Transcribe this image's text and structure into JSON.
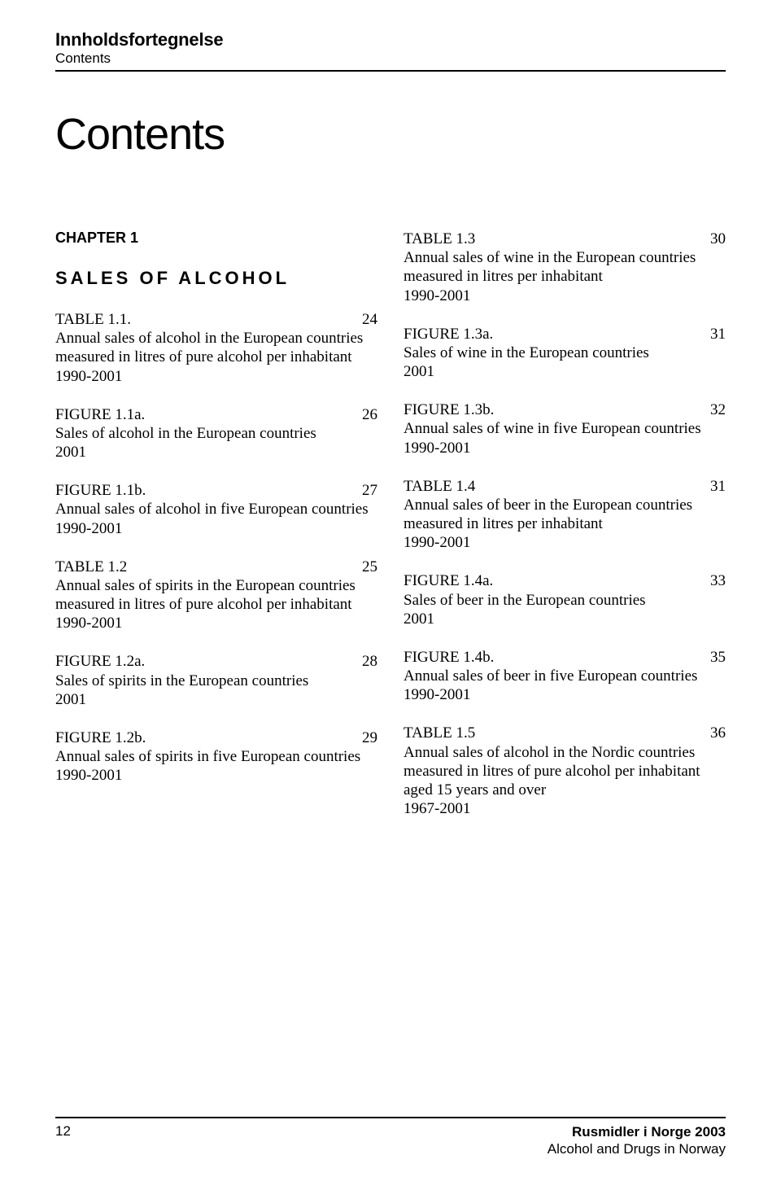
{
  "header": {
    "title": "Innholdsfortegnelse",
    "subtitle": "Contents"
  },
  "main_title": "Contents",
  "chapter_label": "CHAPTER 1",
  "section_heading": "SALES OF ALCOHOL",
  "left_entries": [
    {
      "label": "TABLE 1.1.",
      "page": "24",
      "desc": "Annual sales of alcohol in the European countries measured in litres of pure alcohol per inhabitant",
      "range": "1990-2001"
    },
    {
      "label": "FIGURE 1.1a.",
      "page": "26",
      "desc": "Sales of alcohol in the European countries",
      "range": "2001"
    },
    {
      "label": "FIGURE 1.1b.",
      "page": "27",
      "desc": "Annual sales of alcohol in five European countries",
      "range": "1990-2001"
    },
    {
      "label": "TABLE 1.2",
      "page": "25",
      "desc": "Annual sales of spirits in the European countries measured in litres of pure alcohol per inhabitant",
      "range": "1990-2001"
    },
    {
      "label": "FIGURE 1.2a.",
      "page": "28",
      "desc": "Sales of spirits in the European countries",
      "range": "2001"
    },
    {
      "label": "FIGURE 1.2b.",
      "page": "29",
      "desc": "Annual sales of spirits in five European countries",
      "range": "1990-2001"
    }
  ],
  "right_entries": [
    {
      "label": "TABLE 1.3",
      "page": "30",
      "desc": "Annual sales of wine in the European countries measured in litres per inhabitant",
      "range": "1990-2001"
    },
    {
      "label": "FIGURE 1.3a.",
      "page": "31",
      "desc": "Sales of wine in the European countries",
      "range": "2001"
    },
    {
      "label": "FIGURE 1.3b.",
      "page": "32",
      "desc": "Annual sales of wine in five European countries",
      "range": "1990-2001"
    },
    {
      "label": "TABLE 1.4",
      "page": "31",
      "desc": "Annual sales of beer in the European countries measured in litres per inhabitant",
      "range": "1990-2001"
    },
    {
      "label": "FIGURE 1.4a.",
      "page": "33",
      "desc": "Sales of beer in the European countries",
      "range": "2001"
    },
    {
      "label": "FIGURE 1.4b.",
      "page": "35",
      "desc": "Annual sales of beer in five European countries",
      "range": "1990-2001"
    },
    {
      "label": "TABLE 1.5",
      "page": "36",
      "desc": "Annual sales of alcohol in the Nordic countries measured in litres of pure alcohol per inhabitant aged 15 years and over",
      "range": "1967-2001"
    }
  ],
  "footer": {
    "page_number": "12",
    "pub_title": "Rusmidler i Norge 2003",
    "pub_subtitle": "Alcohol and Drugs in Norway"
  }
}
